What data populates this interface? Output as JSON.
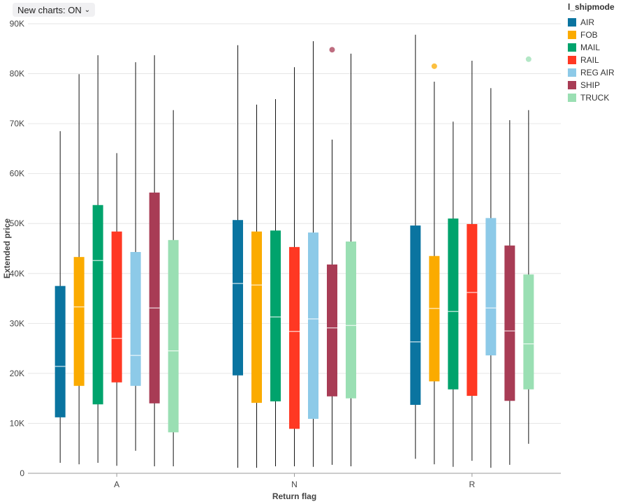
{
  "toolbar": {
    "new_charts_label": "New charts: ON"
  },
  "chart_data": {
    "type": "boxplot",
    "xlabel": "Return flag",
    "ylabel": "Extended price",
    "ylim": [
      0,
      90000
    ],
    "yticks": [
      0,
      10000,
      20000,
      30000,
      40000,
      50000,
      60000,
      70000,
      80000,
      90000
    ],
    "ytick_labels": [
      "0",
      "10K",
      "20K",
      "30K",
      "40K",
      "50K",
      "60K",
      "70K",
      "80K",
      "90K"
    ],
    "grid": true,
    "categories": [
      "A",
      "N",
      "R"
    ],
    "legend": {
      "title": "l_shipmode",
      "placement": "right"
    },
    "series": [
      {
        "name": "AIR",
        "color": "#0a74a0",
        "boxes": [
          {
            "min": 2100,
            "q1": 11200,
            "median": 21400,
            "q3": 37500,
            "max": 68500,
            "outliers": []
          },
          {
            "min": 1100,
            "q1": 19600,
            "median": 38000,
            "q3": 50700,
            "max": 85700,
            "outliers": []
          },
          {
            "min": 2900,
            "q1": 13700,
            "median": 26300,
            "q3": 49600,
            "max": 87800,
            "outliers": []
          }
        ]
      },
      {
        "name": "FOB",
        "color": "#fbab00",
        "boxes": [
          {
            "min": 1800,
            "q1": 17500,
            "median": 33300,
            "q3": 43300,
            "max": 79900,
            "outliers": []
          },
          {
            "min": 1100,
            "q1": 14100,
            "median": 37700,
            "q3": 48400,
            "max": 73800,
            "outliers": []
          },
          {
            "min": 1800,
            "q1": 18400,
            "median": 33000,
            "q3": 43500,
            "max": 78400,
            "outliers": [
              81500
            ]
          }
        ]
      },
      {
        "name": "MAIL",
        "color": "#00a36c",
        "boxes": [
          {
            "min": 2100,
            "q1": 13800,
            "median": 42600,
            "q3": 53700,
            "max": 83700,
            "outliers": []
          },
          {
            "min": 1400,
            "q1": 14400,
            "median": 31300,
            "q3": 48600,
            "max": 74900,
            "outliers": []
          },
          {
            "min": 1300,
            "q1": 16800,
            "median": 32400,
            "q3": 51000,
            "max": 70400,
            "outliers": []
          }
        ]
      },
      {
        "name": "RAIL",
        "color": "#ff3823",
        "boxes": [
          {
            "min": 1500,
            "q1": 18200,
            "median": 27000,
            "q3": 48400,
            "max": 64100,
            "outliers": []
          },
          {
            "min": 1400,
            "q1": 8900,
            "median": 28400,
            "q3": 45300,
            "max": 81300,
            "outliers": []
          },
          {
            "min": 2500,
            "q1": 15500,
            "median": 36200,
            "q3": 49900,
            "max": 82600,
            "outliers": []
          }
        ]
      },
      {
        "name": "REG AIR",
        "color": "#8dcae8",
        "boxes": [
          {
            "min": 4500,
            "q1": 17500,
            "median": 23600,
            "q3": 44300,
            "max": 82300,
            "outliers": []
          },
          {
            "min": 1300,
            "q1": 10900,
            "median": 30900,
            "q3": 48200,
            "max": 86500,
            "outliers": []
          },
          {
            "min": 1100,
            "q1": 23600,
            "median": 33100,
            "q3": 51100,
            "max": 77100,
            "outliers": []
          }
        ]
      },
      {
        "name": "SHIP",
        "color": "#a83c55",
        "boxes": [
          {
            "min": 1400,
            "q1": 14000,
            "median": 33100,
            "q3": 56200,
            "max": 83700,
            "outliers": []
          },
          {
            "min": 1700,
            "q1": 15400,
            "median": 29100,
            "q3": 41800,
            "max": 66800,
            "outliers": [
              84800
            ]
          },
          {
            "min": 1700,
            "q1": 14500,
            "median": 28500,
            "q3": 45600,
            "max": 70700,
            "outliers": []
          }
        ]
      },
      {
        "name": "TRUCK",
        "color": "#9adfb3",
        "boxes": [
          {
            "min": 1400,
            "q1": 8200,
            "median": 24500,
            "q3": 46700,
            "max": 72700,
            "outliers": []
          },
          {
            "min": 1400,
            "q1": 15000,
            "median": 29600,
            "q3": 46400,
            "max": 84000,
            "outliers": []
          },
          {
            "min": 5900,
            "q1": 16800,
            "median": 25900,
            "q3": 39800,
            "max": 72700,
            "outliers": [
              82900
            ]
          }
        ]
      }
    ]
  }
}
